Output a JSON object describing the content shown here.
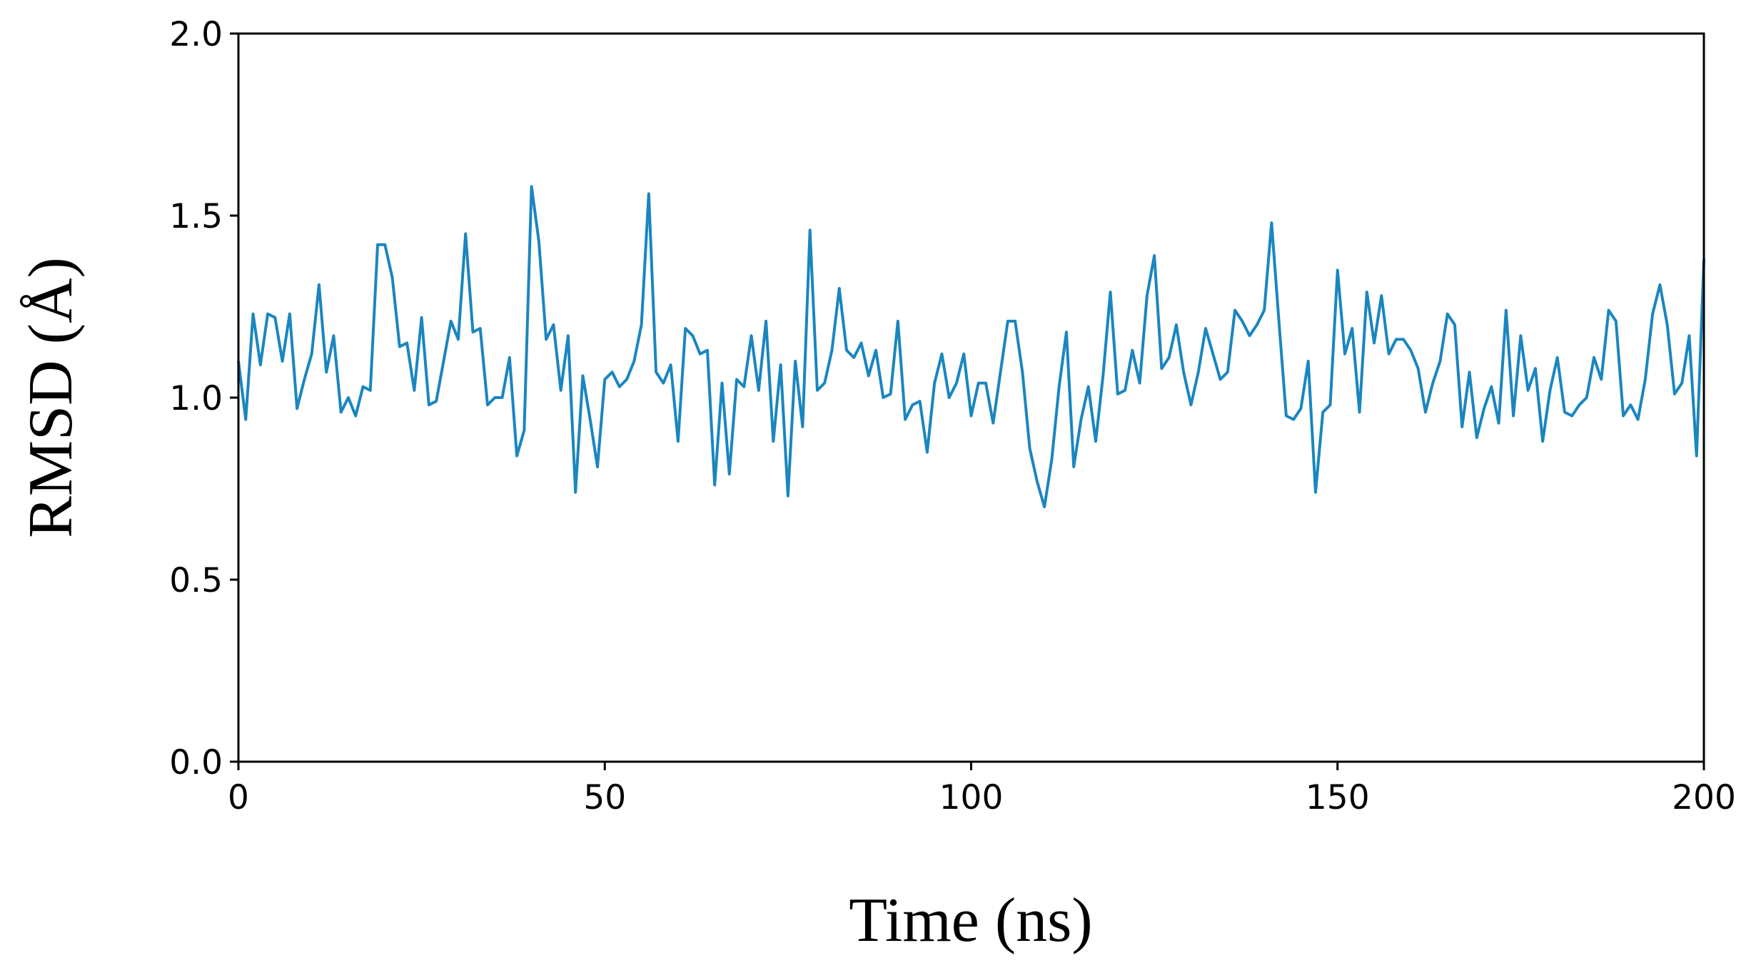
{
  "chart_data": {
    "type": "line",
    "xlabel": "Time (ns)",
    "ylabel": "RMSD (Å)",
    "color": "#1a86c0",
    "x": [
      0,
      1,
      2,
      3,
      4,
      5,
      6,
      7,
      8,
      9,
      10,
      11,
      12,
      13,
      14,
      15,
      16,
      17,
      18,
      19,
      20,
      21,
      22,
      23,
      24,
      25,
      26,
      27,
      28,
      29,
      30,
      31,
      32,
      33,
      34,
      35,
      36,
      37,
      38,
      39,
      40,
      41,
      42,
      43,
      44,
      45,
      46,
      47,
      48,
      49,
      50,
      51,
      52,
      53,
      54,
      55,
      56,
      57,
      58,
      59,
      60,
      61,
      62,
      63,
      64,
      65,
      66,
      67,
      68,
      69,
      70,
      71,
      72,
      73,
      74,
      75,
      76,
      77,
      78,
      79,
      80,
      81,
      82,
      83,
      84,
      85,
      86,
      87,
      88,
      89,
      90,
      91,
      92,
      93,
      94,
      95,
      96,
      97,
      98,
      99,
      100,
      101,
      102,
      103,
      104,
      105,
      106,
      107,
      108,
      109,
      110,
      111,
      112,
      113,
      114,
      115,
      116,
      117,
      118,
      119,
      120,
      121,
      122,
      123,
      124,
      125,
      126,
      127,
      128,
      129,
      130,
      131,
      132,
      133,
      134,
      135,
      136,
      137,
      138,
      139,
      140,
      141,
      142,
      143,
      144,
      145,
      146,
      147,
      148,
      149,
      150,
      151,
      152,
      153,
      154,
      155,
      156,
      157,
      158,
      159,
      160,
      161,
      162,
      163,
      164,
      165,
      166,
      167,
      168,
      169,
      170,
      171,
      172,
      173,
      174,
      175,
      176,
      177,
      178,
      179,
      180,
      181,
      182,
      183,
      184,
      185,
      186,
      187,
      188,
      189,
      190,
      191,
      192,
      193,
      194,
      195,
      196,
      197,
      198,
      199,
      200
    ],
    "values": [
      1.1,
      0.94,
      1.23,
      1.09,
      1.23,
      1.22,
      1.1,
      1.23,
      0.97,
      1.05,
      1.12,
      1.31,
      1.07,
      1.17,
      0.96,
      1.0,
      0.95,
      1.03,
      1.02,
      1.42,
      1.42,
      1.33,
      1.14,
      1.15,
      1.02,
      1.22,
      0.98,
      0.99,
      1.1,
      1.21,
      1.16,
      1.45,
      1.18,
      1.19,
      0.98,
      1.0,
      1.0,
      1.11,
      0.84,
      0.91,
      1.58,
      1.43,
      1.16,
      1.2,
      1.02,
      1.17,
      0.74,
      1.06,
      0.94,
      0.81,
      1.05,
      1.07,
      1.03,
      1.05,
      1.1,
      1.2,
      1.56,
      1.07,
      1.04,
      1.09,
      0.88,
      1.19,
      1.17,
      1.12,
      1.13,
      0.76,
      1.04,
      0.79,
      1.05,
      1.03,
      1.17,
      1.02,
      1.21,
      0.88,
      1.09,
      0.73,
      1.1,
      0.92,
      1.46,
      1.02,
      1.04,
      1.13,
      1.3,
      1.13,
      1.11,
      1.15,
      1.06,
      1.13,
      1.0,
      1.01,
      1.21,
      0.94,
      0.98,
      0.99,
      0.85,
      1.04,
      1.12,
      1.0,
      1.04,
      1.12,
      0.95,
      1.04,
      1.04,
      0.93,
      1.07,
      1.21,
      1.21,
      1.07,
      0.86,
      0.77,
      0.7,
      0.83,
      1.03,
      1.18,
      0.81,
      0.94,
      1.03,
      0.88,
      1.06,
      1.29,
      1.01,
      1.02,
      1.13,
      1.04,
      1.28,
      1.39,
      1.08,
      1.11,
      1.2,
      1.07,
      0.98,
      1.07,
      1.19,
      1.12,
      1.05,
      1.07,
      1.24,
      1.21,
      1.17,
      1.2,
      1.24,
      1.48,
      1.21,
      0.95,
      0.94,
      0.97,
      1.1,
      0.74,
      0.96,
      0.98,
      1.35,
      1.12,
      1.19,
      0.96,
      1.29,
      1.15,
      1.28,
      1.12,
      1.16,
      1.16,
      1.13,
      1.08,
      0.96,
      1.04,
      1.1,
      1.23,
      1.2,
      0.92,
      1.07,
      0.89,
      0.97,
      1.03,
      0.93,
      1.24,
      0.95,
      1.17,
      1.02,
      1.08,
      0.88,
      1.02,
      1.11,
      0.96,
      0.95,
      0.98,
      1.0,
      1.11,
      1.05,
      1.24,
      1.21,
      0.95,
      0.98,
      0.94,
      1.05,
      1.23,
      1.31,
      1.2,
      1.01,
      1.04,
      1.17,
      0.84,
      1.38
    ],
    "xlim": [
      0,
      200
    ],
    "xticks": [
      0,
      50,
      100,
      150,
      200
    ],
    "ylim": [
      0,
      2
    ],
    "yticks": [
      {
        "value": 0,
        "label": "0.0"
      },
      0.5,
      {
        "value": 1,
        "label": "1.0"
      },
      1.5,
      {
        "value": 2,
        "label": "2.0"
      }
    ]
  }
}
